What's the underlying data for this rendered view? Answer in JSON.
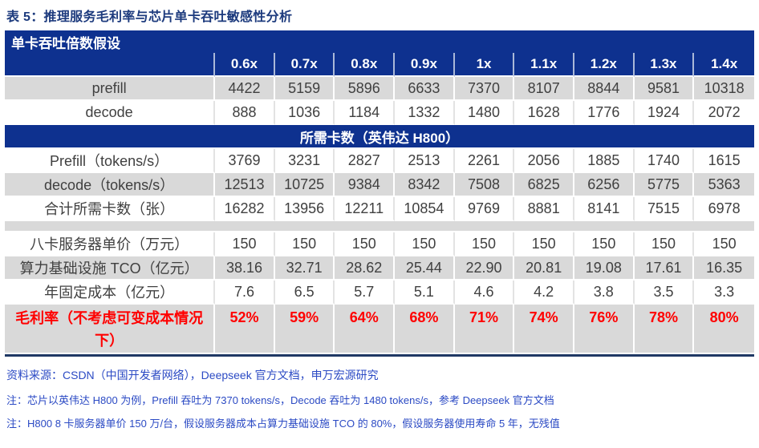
{
  "title": "表 5：推理服务毛利率与芯片单卡吞吐敏感性分析",
  "table": {
    "top_header": "单卡吞吐倍数假设",
    "col_headers": [
      "0.6x",
      "0.7x",
      "0.8x",
      "0.9x",
      "1x",
      "1.1x",
      "1.2x",
      "1.3x",
      "1.4x"
    ],
    "throughput_rows": [
      {
        "label": "prefill",
        "values": [
          "4422",
          "5159",
          "5896",
          "6633",
          "7370",
          "8107",
          "8844",
          "9581",
          "10318"
        ]
      },
      {
        "label": "decode",
        "values": [
          "888",
          "1036",
          "1184",
          "1332",
          "1480",
          "1628",
          "1776",
          "1924",
          "2072"
        ]
      }
    ],
    "section_header": "所需卡数（英伟达 H800）",
    "cards_rows": [
      {
        "label": "Prefill（tokens/s）",
        "values": [
          "3769",
          "3231",
          "2827",
          "2513",
          "2261",
          "2056",
          "1885",
          "1740",
          "1615"
        ]
      },
      {
        "label": "decode（tokens/s）",
        "values": [
          "12513",
          "10725",
          "9384",
          "8342",
          "7508",
          "6825",
          "6256",
          "5775",
          "5363"
        ]
      },
      {
        "label": "合计所需卡数（张）",
        "values": [
          "16282",
          "13956",
          "12211",
          "10854",
          "9769",
          "8881",
          "8141",
          "7515",
          "6978"
        ]
      }
    ],
    "cost_rows": [
      {
        "label": "八卡服务器单价（万元）",
        "values": [
          "150",
          "150",
          "150",
          "150",
          "150",
          "150",
          "150",
          "150",
          "150"
        ]
      },
      {
        "label": "算力基础设施 TCO（亿元）",
        "values": [
          "38.16",
          "32.71",
          "28.62",
          "25.44",
          "22.90",
          "20.81",
          "19.08",
          "17.61",
          "16.35"
        ]
      },
      {
        "label": "年固定成本（亿元）",
        "values": [
          "7.6",
          "6.5",
          "5.7",
          "5.1",
          "4.6",
          "4.2",
          "3.8",
          "3.5",
          "3.3"
        ]
      }
    ],
    "margin_row": {
      "label": "毛利率（不考虑可变成本情况下）",
      "values": [
        "52%",
        "59%",
        "64%",
        "68%",
        "71%",
        "74%",
        "76%",
        "78%",
        "80%"
      ]
    }
  },
  "footer": {
    "source": "资料来源：CSDN（中国开发者网络），Deepseek 官方文档，申万宏源研究",
    "note1": "注：芯片以英伟达 H800 为例，Prefill 吞吐为 7370 tokens/s，Decode 吞吐为 1480 tokens/s，参考 Deepseek 官方文档",
    "note2": "注：H800 8 卡服务器单价 150 万/台，假设服务器成本占算力基础设施 TCO 的 80%，假设服务器使用寿命 5 年，无残值"
  },
  "colors": {
    "bar_blue": "#0E318F",
    "deep_navy": "#1F3864",
    "title_navy": "#1C3A7D",
    "gray_row": "#D9D9D9",
    "cell_text": "#404040",
    "margin_red": "#FF0000",
    "footer_blue": "#2B4AC4"
  }
}
